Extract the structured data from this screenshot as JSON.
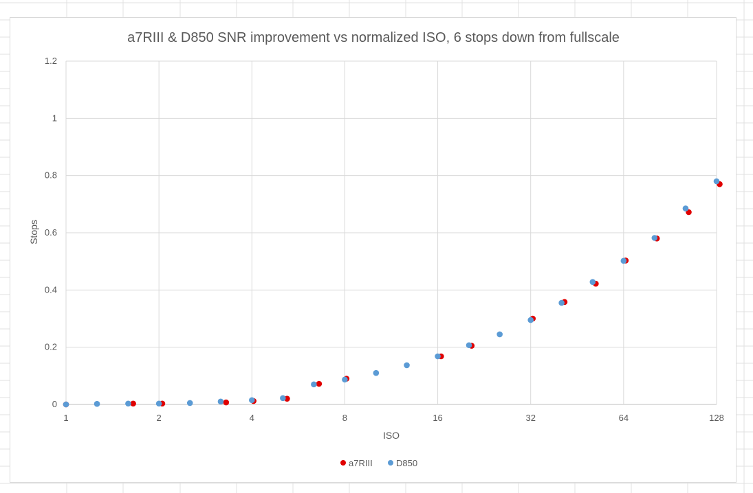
{
  "chart_data": {
    "type": "scatter",
    "title": "a7RIII & D850 SNR improvement vs normalized ISO, 6 stops down from fullscale",
    "xlabel": "ISO",
    "ylabel": "Stops",
    "x_scale": "log2",
    "xlim": [
      1,
      128
    ],
    "ylim": [
      0,
      1.2
    ],
    "x_ticks": [
      "1",
      "2",
      "4",
      "8",
      "16",
      "32",
      "64",
      "128"
    ],
    "y_ticks": [
      "0",
      "0.2",
      "0.4",
      "0.6",
      "0.8",
      "1",
      "1.2"
    ],
    "grid": true,
    "legend_position": "bottom",
    "series": [
      {
        "name": "a7RIII",
        "color": "#e00000",
        "points": [
          {
            "x": 1,
            "y": 0.0
          },
          {
            "x": 1.65,
            "y": 0.003
          },
          {
            "x": 2.05,
            "y": 0.003
          },
          {
            "x": 3.3,
            "y": 0.007
          },
          {
            "x": 4.05,
            "y": 0.012
          },
          {
            "x": 5.2,
            "y": 0.02
          },
          {
            "x": 6.6,
            "y": 0.072
          },
          {
            "x": 8.1,
            "y": 0.09
          },
          {
            "x": 16.4,
            "y": 0.168
          },
          {
            "x": 20.6,
            "y": 0.205
          },
          {
            "x": 32.5,
            "y": 0.3
          },
          {
            "x": 41.2,
            "y": 0.358
          },
          {
            "x": 52,
            "y": 0.422
          },
          {
            "x": 65,
            "y": 0.503
          },
          {
            "x": 82,
            "y": 0.58
          },
          {
            "x": 104,
            "y": 0.672
          },
          {
            "x": 131,
            "y": 0.77
          }
        ]
      },
      {
        "name": "D850",
        "color": "#5b9bd5",
        "points": [
          {
            "x": 1,
            "y": 0.0
          },
          {
            "x": 1.26,
            "y": 0.002
          },
          {
            "x": 1.59,
            "y": 0.003
          },
          {
            "x": 2.0,
            "y": 0.003
          },
          {
            "x": 2.52,
            "y": 0.005
          },
          {
            "x": 3.17,
            "y": 0.01
          },
          {
            "x": 4.0,
            "y": 0.015
          },
          {
            "x": 5.04,
            "y": 0.022
          },
          {
            "x": 6.35,
            "y": 0.07
          },
          {
            "x": 8.0,
            "y": 0.087
          },
          {
            "x": 10.1,
            "y": 0.11
          },
          {
            "x": 12.7,
            "y": 0.137
          },
          {
            "x": 16,
            "y": 0.168
          },
          {
            "x": 20.2,
            "y": 0.207
          },
          {
            "x": 25.4,
            "y": 0.245
          },
          {
            "x": 32,
            "y": 0.295
          },
          {
            "x": 40.3,
            "y": 0.355
          },
          {
            "x": 50.8,
            "y": 0.428
          },
          {
            "x": 64,
            "y": 0.502
          },
          {
            "x": 80.6,
            "y": 0.582
          },
          {
            "x": 101.6,
            "y": 0.685
          },
          {
            "x": 128,
            "y": 0.78
          }
        ]
      }
    ]
  }
}
